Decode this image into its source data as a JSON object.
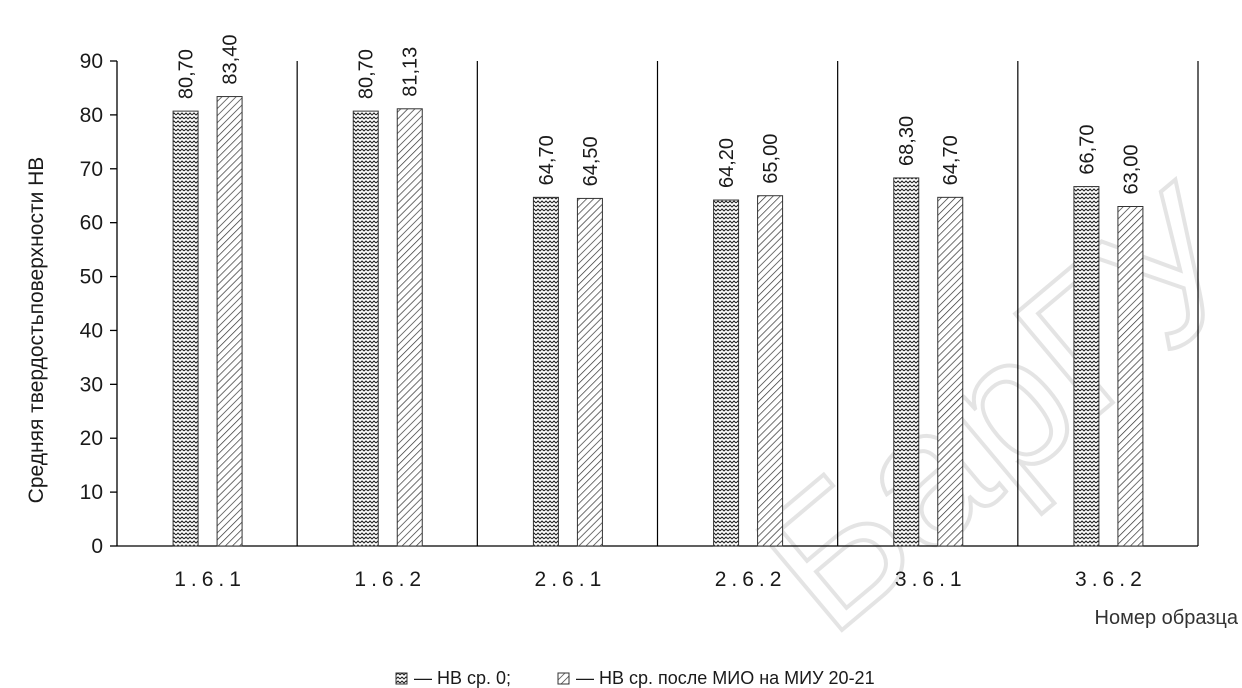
{
  "chart_data": {
    "type": "bar",
    "title": "",
    "xlabel": "Номер образца",
    "ylabel": "Средняя твердостьповерхности  HB",
    "ylim": [
      0,
      90
    ],
    "yticks": [
      "0",
      "10",
      "20",
      "30",
      "40",
      "50",
      "60",
      "70",
      "80",
      "90"
    ],
    "categories": [
      "1.6.1",
      "1.6.2",
      "2.6.1",
      "2.6.2",
      "3.6.1",
      "3.6.2"
    ],
    "series": [
      {
        "name": "— HB ср. 0;",
        "values": [
          80.7,
          80.7,
          64.7,
          64.2,
          68.3,
          66.7
        ],
        "labels": [
          "80,70",
          "80,70",
          "64,70",
          "64,20",
          "68,30",
          "66,70"
        ],
        "pattern": "zigzag"
      },
      {
        "name": "— HB ср. после МИО на МИУ 20-21",
        "values": [
          83.4,
          81.13,
          64.5,
          65.0,
          64.7,
          63.0
        ],
        "labels": [
          "83,40",
          "81,13",
          "64,50",
          "65,00",
          "64,70",
          "63,00"
        ],
        "pattern": "diagonal"
      }
    ],
    "grid": false,
    "legend": "bottom",
    "watermark": "БарГУ"
  }
}
